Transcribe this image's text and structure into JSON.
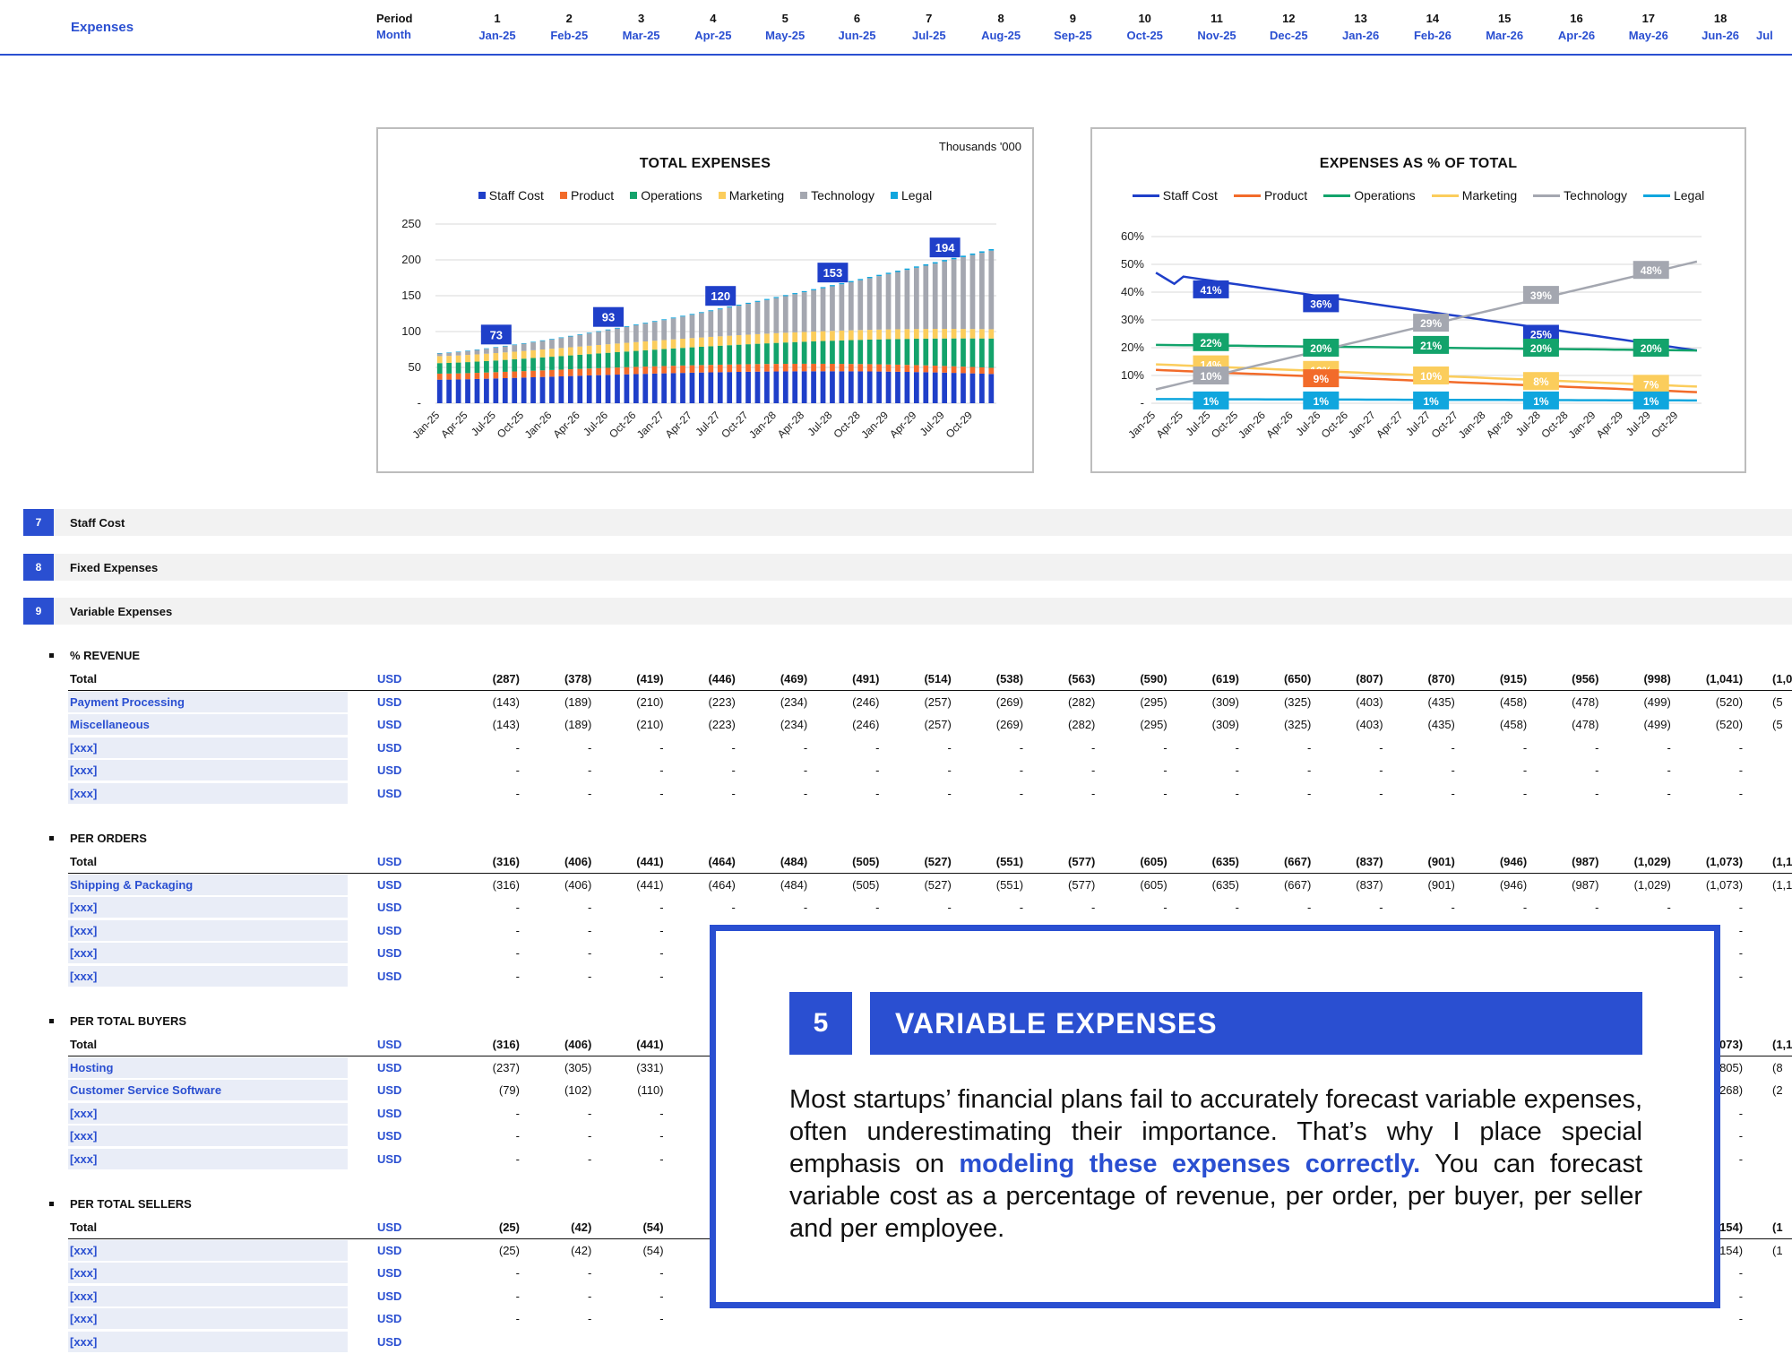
{
  "header": {
    "title": "Expenses",
    "period_label": "Period",
    "month_label": "Month",
    "periods": [
      "1",
      "2",
      "3",
      "4",
      "5",
      "6",
      "7",
      "8",
      "9",
      "10",
      "11",
      "12",
      "13",
      "14",
      "15",
      "16",
      "17",
      "18"
    ],
    "months": [
      "Jan-25",
      "Feb-25",
      "Mar-25",
      "Apr-25",
      "May-25",
      "Jun-25",
      "Jul-25",
      "Aug-25",
      "Sep-25",
      "Oct-25",
      "Nov-25",
      "Dec-25",
      "Jan-26",
      "Feb-26",
      "Mar-26",
      "Apr-26",
      "May-26",
      "Jun-26"
    ],
    "partial_month": "Jul"
  },
  "colors": {
    "staff": "#1f3fc9",
    "product": "#f26b2a",
    "operations": "#13a36b",
    "marketing": "#fbcd5c",
    "technology": "#a4a7b0",
    "legal": "#10a6de",
    "accent": "#2a4fd1"
  },
  "chart_data": [
    {
      "type": "bar",
      "stacked": true,
      "title": "TOTAL EXPENSES",
      "unit_note": "Thousands '000",
      "series_names": [
        "Staff Cost",
        "Product",
        "Operations",
        "Marketing",
        "Technology",
        "Legal"
      ],
      "ylim": [
        0,
        250
      ],
      "yticks": [
        "-",
        "50",
        "100",
        "150",
        "200",
        "250"
      ],
      "x_tick_labels": [
        "Jan-25",
        "Apr-25",
        "Jul-25",
        "Oct-25",
        "Jan-26",
        "Apr-26",
        "Jul-26",
        "Oct-26",
        "Jan-27",
        "Apr-27",
        "Jul-27",
        "Oct-27",
        "Jan-28",
        "Apr-28",
        "Jul-28",
        "Oct-28",
        "Jan-29",
        "Apr-29",
        "Jul-29",
        "Oct-29"
      ],
      "months": 60,
      "totals_first_last": [
        70,
        215
      ],
      "annotations": [
        {
          "month_index": 6,
          "label": "73"
        },
        {
          "month_index": 18,
          "label": "93"
        },
        {
          "month_index": 30,
          "label": "120"
        },
        {
          "month_index": 42,
          "label": "153"
        },
        {
          "month_index": 54,
          "label": "194"
        }
      ],
      "grid": true,
      "legend": "top"
    },
    {
      "type": "line",
      "title": "EXPENSES AS % OF TOTAL",
      "series_names": [
        "Staff Cost",
        "Product",
        "Operations",
        "Marketing",
        "Technology",
        "Legal"
      ],
      "ylim": [
        0,
        60
      ],
      "yticks": [
        "-",
        "10%",
        "20%",
        "30%",
        "40%",
        "50%",
        "60%"
      ],
      "x_tick_labels": [
        "Jan-25",
        "Apr-25",
        "Jul-25",
        "Oct-25",
        "Jan-26",
        "Apr-26",
        "Jul-26",
        "Oct-26",
        "Jan-27",
        "Apr-27",
        "Jul-27",
        "Oct-27",
        "Jan-28",
        "Apr-28",
        "Jul-28",
        "Oct-28",
        "Jan-29",
        "Apr-29",
        "Jul-29",
        "Oct-29"
      ],
      "series_endpoints": {
        "Staff Cost": [
          47,
          19
        ],
        "Product": [
          12,
          4
        ],
        "Operations": [
          21,
          19
        ],
        "Marketing": [
          14,
          6
        ],
        "Technology": [
          5,
          51
        ],
        "Legal": [
          1.5,
          1
        ]
      },
      "annotations": [
        {
          "month_index": 6,
          "labels": [
            "41%",
            "22%",
            "14%",
            "10%",
            "1%"
          ]
        },
        {
          "month_index": 18,
          "labels": [
            "36%",
            "20%",
            "12%",
            "9%",
            "1%"
          ]
        },
        {
          "month_index": 30,
          "labels": [
            "29%",
            "21%",
            "10%",
            "1%"
          ]
        },
        {
          "month_index": 42,
          "labels": [
            "39%",
            "25%",
            "20%",
            "8%",
            "1%"
          ]
        },
        {
          "month_index": 54,
          "labels": [
            "48%",
            "20%",
            "7%",
            "1%"
          ]
        }
      ],
      "grid": true,
      "legend": "top"
    }
  ],
  "sections": [
    {
      "num": "7",
      "label": "Staff Cost"
    },
    {
      "num": "8",
      "label": "Fixed Expenses"
    },
    {
      "num": "9",
      "label": "Variable Expenses"
    }
  ],
  "groups": [
    {
      "title": "% REVENUE",
      "rows": [
        {
          "label": "Total",
          "unit": "USD",
          "total": true,
          "values": [
            "(287)",
            "(378)",
            "(419)",
            "(446)",
            "(469)",
            "(491)",
            "(514)",
            "(538)",
            "(563)",
            "(590)",
            "(619)",
            "(650)",
            "(807)",
            "(870)",
            "(915)",
            "(956)",
            "(998)",
            "(1,041)"
          ],
          "partial": "(1,0"
        },
        {
          "label": "Payment Processing",
          "unit": "USD",
          "values": [
            "(143)",
            "(189)",
            "(210)",
            "(223)",
            "(234)",
            "(246)",
            "(257)",
            "(269)",
            "(282)",
            "(295)",
            "(309)",
            "(325)",
            "(403)",
            "(435)",
            "(458)",
            "(478)",
            "(499)",
            "(520)"
          ],
          "partial": "(5"
        },
        {
          "label": "Miscellaneous",
          "unit": "USD",
          "values": [
            "(143)",
            "(189)",
            "(210)",
            "(223)",
            "(234)",
            "(246)",
            "(257)",
            "(269)",
            "(282)",
            "(295)",
            "(309)",
            "(325)",
            "(403)",
            "(435)",
            "(458)",
            "(478)",
            "(499)",
            "(520)"
          ],
          "partial": "(5"
        },
        {
          "label": "[xxx]",
          "unit": "USD",
          "values": [
            "-",
            "-",
            "-",
            "-",
            "-",
            "-",
            "-",
            "-",
            "-",
            "-",
            "-",
            "-",
            "-",
            "-",
            "-",
            "-",
            "-",
            "-"
          ]
        },
        {
          "label": "[xxx]",
          "unit": "USD",
          "values": [
            "-",
            "-",
            "-",
            "-",
            "-",
            "-",
            "-",
            "-",
            "-",
            "-",
            "-",
            "-",
            "-",
            "-",
            "-",
            "-",
            "-",
            "-"
          ]
        },
        {
          "label": "[xxx]",
          "unit": "USD",
          "values": [
            "-",
            "-",
            "-",
            "-",
            "-",
            "-",
            "-",
            "-",
            "-",
            "-",
            "-",
            "-",
            "-",
            "-",
            "-",
            "-",
            "-",
            "-"
          ]
        }
      ]
    },
    {
      "title": "PER ORDERS",
      "rows": [
        {
          "label": "Total",
          "unit": "USD",
          "total": true,
          "values": [
            "(316)",
            "(406)",
            "(441)",
            "(464)",
            "(484)",
            "(505)",
            "(527)",
            "(551)",
            "(577)",
            "(605)",
            "(635)",
            "(667)",
            "(837)",
            "(901)",
            "(946)",
            "(987)",
            "(1,029)",
            "(1,073)"
          ],
          "partial": "(1,1"
        },
        {
          "label": "Shipping & Packaging",
          "unit": "USD",
          "values": [
            "(316)",
            "(406)",
            "(441)",
            "(464)",
            "(484)",
            "(505)",
            "(527)",
            "(551)",
            "(577)",
            "(605)",
            "(635)",
            "(667)",
            "(837)",
            "(901)",
            "(946)",
            "(987)",
            "(1,029)",
            "(1,073)"
          ],
          "partial": "(1,1"
        },
        {
          "label": "[xxx]",
          "unit": "USD",
          "values": [
            "-",
            "-",
            "-",
            "-",
            "-",
            "-",
            "-",
            "-",
            "-",
            "-",
            "-",
            "-",
            "-",
            "-",
            "-",
            "-",
            "-",
            "-"
          ]
        },
        {
          "label": "[xxx]",
          "unit": "USD",
          "values": [
            "-",
            "-",
            "-",
            "-",
            "-",
            "-",
            "-",
            "-",
            "-",
            "-",
            "-",
            "-",
            "-",
            "-",
            "-",
            "-",
            "-",
            "-"
          ]
        },
        {
          "label": "[xxx]",
          "unit": "USD",
          "values": [
            "-",
            "-",
            "-",
            "-",
            "-",
            "-",
            "-",
            "-",
            "-",
            "-",
            "-",
            "-",
            "-",
            "-",
            "-",
            "-",
            "-",
            "-"
          ]
        },
        {
          "label": "[xxx]",
          "unit": "USD",
          "values": [
            "-",
            "-",
            "-",
            "-",
            "-",
            "-",
            "-",
            "-",
            "-",
            "-",
            "-",
            "-",
            "-",
            "-",
            "-",
            "-",
            "-",
            "-"
          ]
        }
      ]
    },
    {
      "title": "PER TOTAL BUYERS",
      "rows": [
        {
          "label": "Total",
          "unit": "USD",
          "total": true,
          "values": [
            "(316)",
            "(406)",
            "(441)",
            "",
            "",
            "",
            "",
            "",
            "",
            "",
            "",
            "",
            "",
            "",
            "",
            "",
            "",
            "(1,073)"
          ],
          "partial": "(1,1"
        },
        {
          "label": "Hosting",
          "unit": "USD",
          "values": [
            "(237)",
            "(305)",
            "(331)",
            "",
            "",
            "",
            "",
            "",
            "",
            "",
            "",
            "",
            "",
            "",
            "",
            "",
            "",
            "(805)"
          ],
          "partial": "(8"
        },
        {
          "label": "Customer Service Software",
          "unit": "USD",
          "values": [
            "(79)",
            "(102)",
            "(110)",
            "",
            "",
            "",
            "",
            "",
            "",
            "",
            "",
            "",
            "",
            "",
            "",
            "",
            "",
            "(268)"
          ],
          "partial": "(2"
        },
        {
          "label": "[xxx]",
          "unit": "USD",
          "values": [
            "-",
            "-",
            "-",
            "",
            "",
            "",
            "",
            "",
            "",
            "",
            "",
            "",
            "",
            "",
            "",
            "",
            "",
            "-"
          ]
        },
        {
          "label": "[xxx]",
          "unit": "USD",
          "values": [
            "-",
            "-",
            "-",
            "",
            "",
            "",
            "",
            "",
            "",
            "",
            "",
            "",
            "",
            "",
            "",
            "",
            "",
            "-"
          ]
        },
        {
          "label": "[xxx]",
          "unit": "USD",
          "values": [
            "-",
            "-",
            "-",
            "",
            "",
            "",
            "",
            "",
            "",
            "",
            "",
            "",
            "",
            "",
            "",
            "",
            "",
            "-"
          ]
        }
      ]
    },
    {
      "title": "PER TOTAL SELLERS",
      "rows": [
        {
          "label": "Total",
          "unit": "USD",
          "total": true,
          "values": [
            "(25)",
            "(42)",
            "(54)",
            "",
            "",
            "",
            "",
            "",
            "",
            "",
            "",
            "",
            "",
            "",
            "",
            "",
            "",
            "(154)"
          ],
          "partial": "(1"
        },
        {
          "label": "[xxx]",
          "unit": "USD",
          "values": [
            "(25)",
            "(42)",
            "(54)",
            "",
            "",
            "",
            "",
            "",
            "",
            "",
            "",
            "",
            "",
            "",
            "",
            "",
            "",
            "(154)"
          ],
          "partial": "(1"
        },
        {
          "label": "[xxx]",
          "unit": "USD",
          "values": [
            "-",
            "-",
            "-",
            "",
            "",
            "",
            "",
            "",
            "",
            "",
            "",
            "",
            "",
            "",
            "",
            "",
            "",
            "-"
          ]
        },
        {
          "label": "[xxx]",
          "unit": "USD",
          "values": [
            "-",
            "-",
            "-",
            "",
            "",
            "",
            "",
            "",
            "",
            "",
            "",
            "",
            "",
            "",
            "",
            "",
            "",
            "-"
          ]
        },
        {
          "label": "[xxx]",
          "unit": "USD",
          "values": [
            "-",
            "-",
            "-",
            "",
            "",
            "",
            "",
            "",
            "",
            "",
            "",
            "",
            "",
            "",
            "",
            "",
            "",
            "-"
          ]
        },
        {
          "label": "[xxx]",
          "unit": "USD",
          "values": [
            "",
            "",
            "",
            "",
            "",
            "",
            "",
            "",
            "",
            "",
            "",
            "",
            "",
            "",
            "",
            "",
            "",
            ""
          ]
        }
      ]
    }
  ],
  "callout": {
    "number": "5",
    "title": "VARIABLE EXPENSES",
    "body_before": "Most startups’ financial plans fail to accurately forecast variable expenses, often underestimating their importance. That’s why I place special emphasis on ",
    "body_highlight": "modeling these expenses correctly.",
    "body_after": " You can forecast variable cost as a percentage of revenue, per order, per buyer, per seller and per employee."
  }
}
